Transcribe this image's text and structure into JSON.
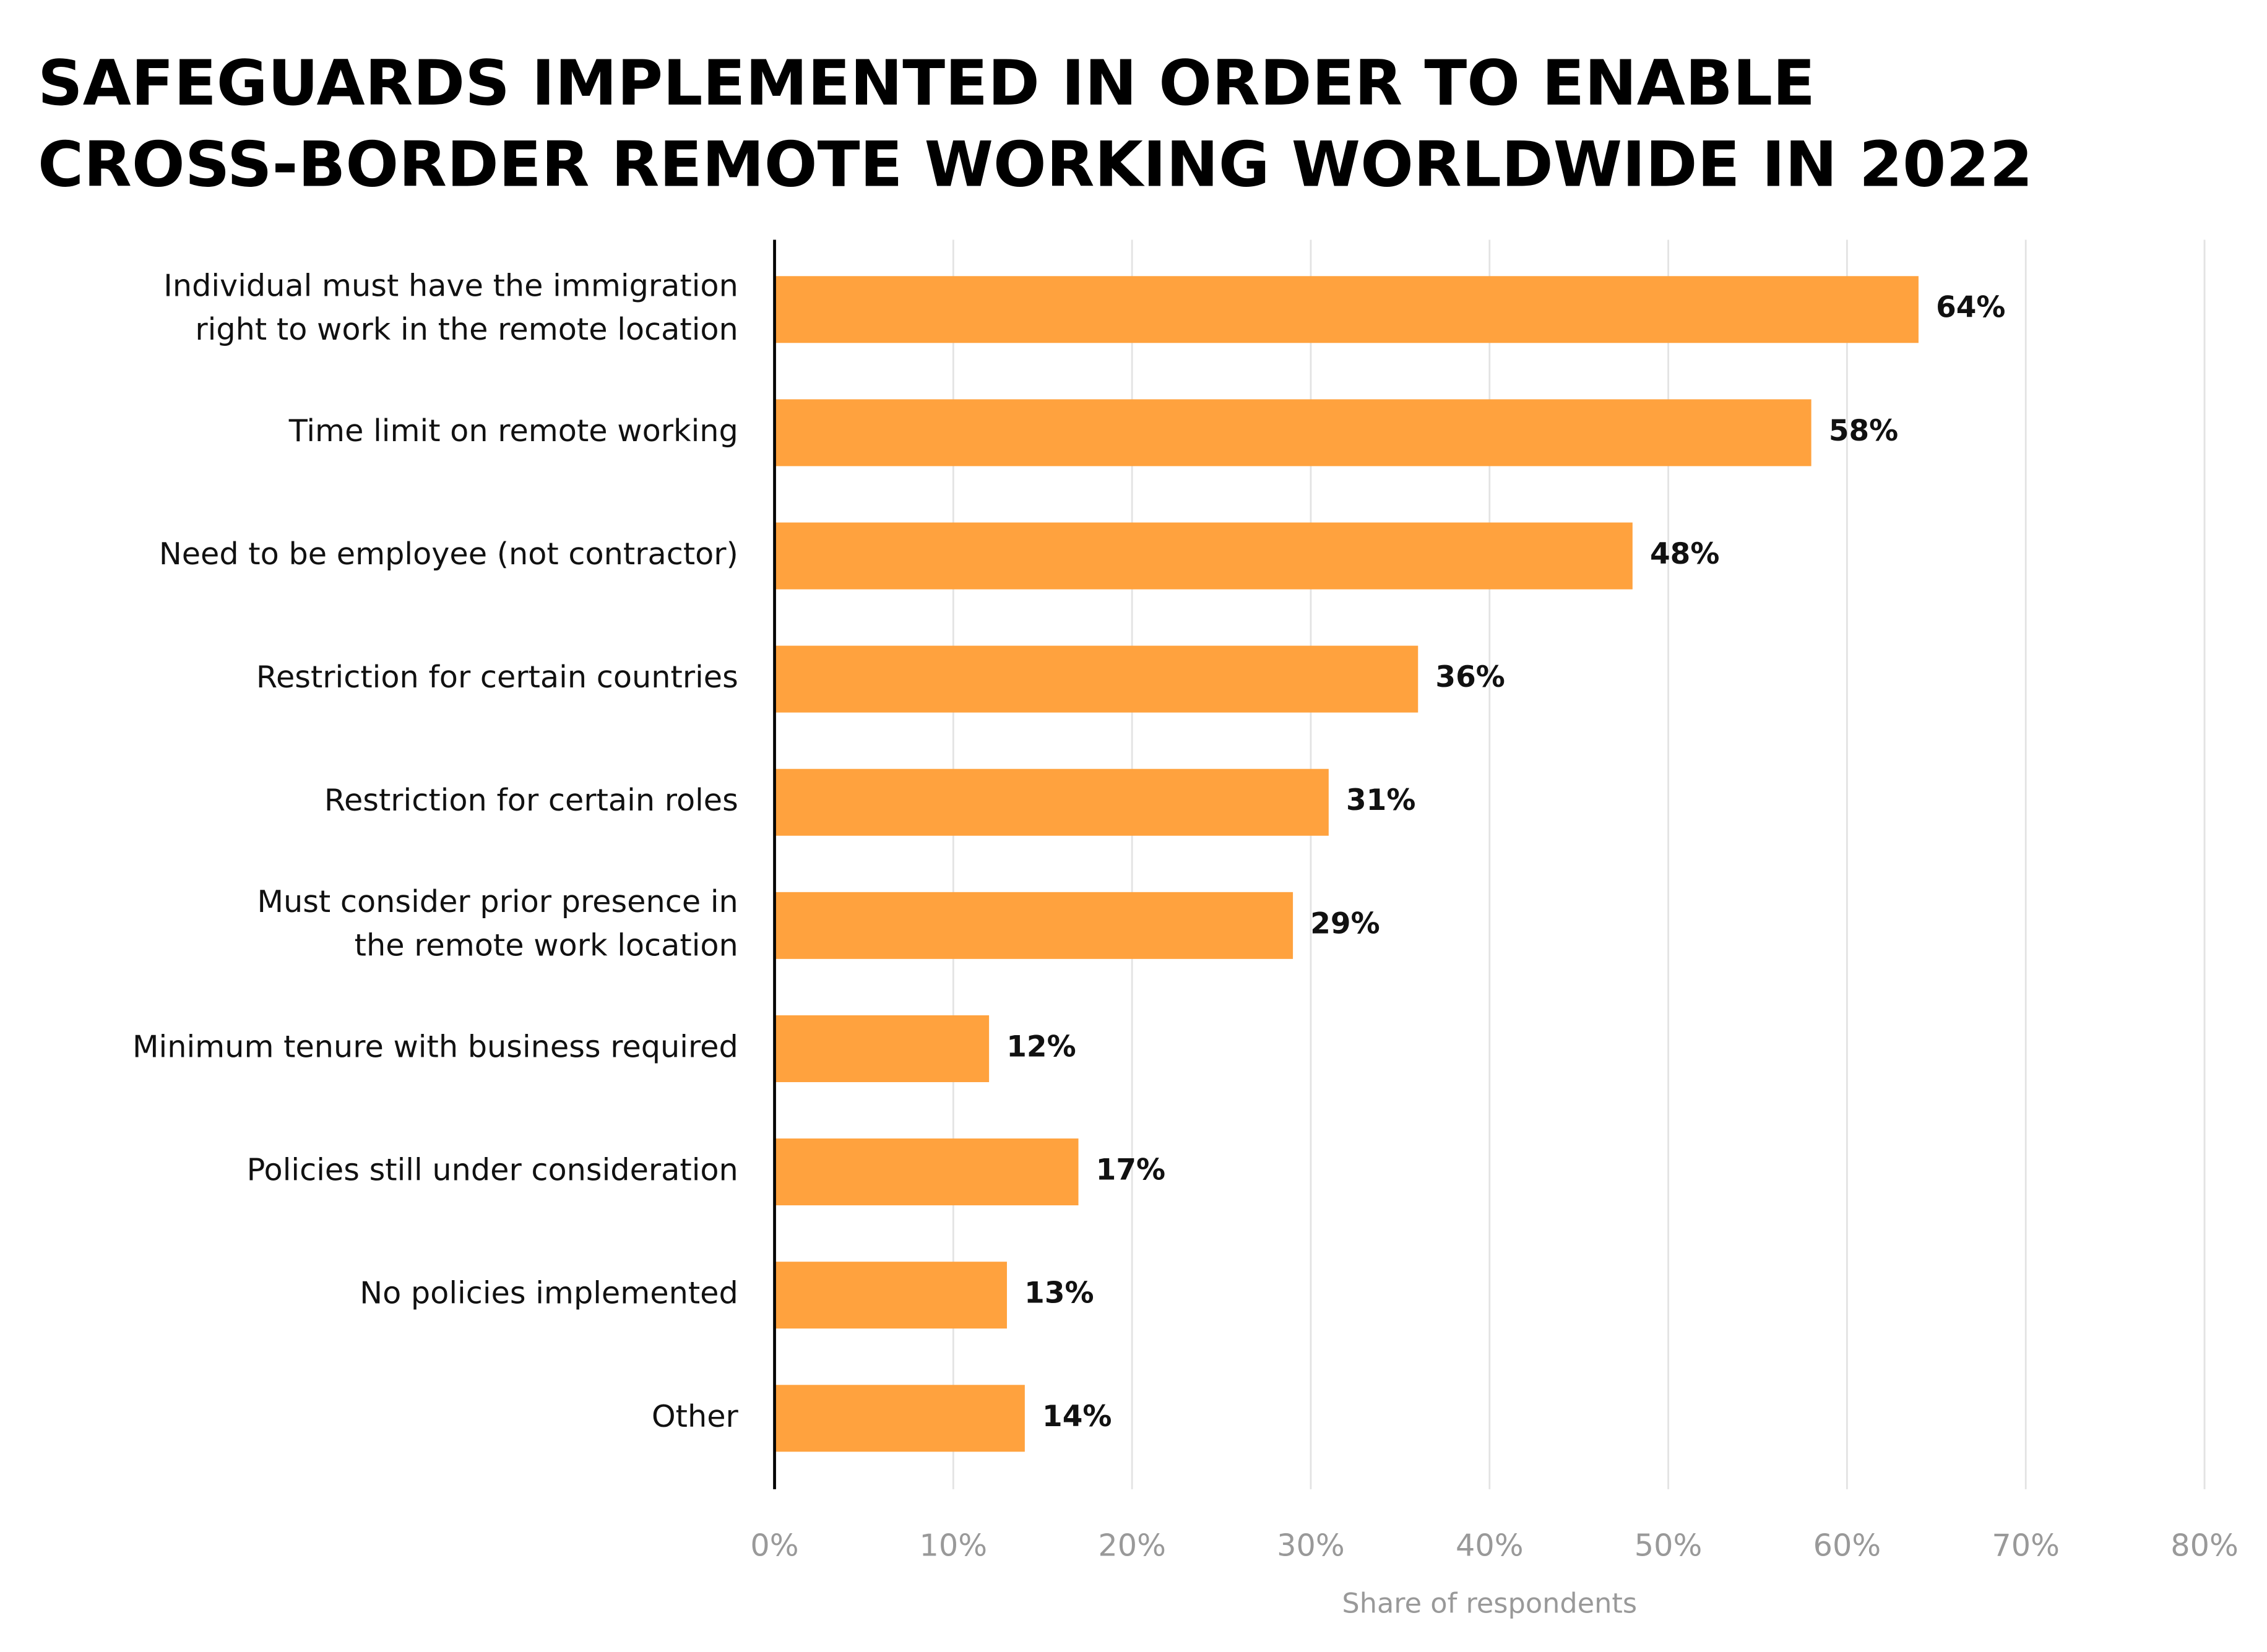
{
  "chart_data": {
    "type": "bar",
    "orientation": "horizontal",
    "title": [
      "SAFEGUARDS IMPLEMENTED IN ORDER TO ENABLE",
      "CROSS-BORDER REMOTE WORKING WORLDWIDE IN 2022"
    ],
    "categories": [
      [
        "Individual must have the immigration",
        "right to work in the remote location"
      ],
      "Time limit on remote working",
      "Need to be employee (not contractor)",
      "Restriction for certain countries",
      "Restriction for certain roles",
      [
        "Must consider prior presence in",
        "the remote work location"
      ],
      "Minimum tenure with business required",
      "Policies still under consideration",
      "No policies implemented",
      "Other"
    ],
    "values": [
      64,
      58,
      48,
      36,
      31,
      29,
      12,
      17,
      13,
      14
    ],
    "value_labels": [
      "64%",
      "58%",
      "48%",
      "36%",
      "31%",
      "29%",
      "12%",
      "17%",
      "13%",
      "14%"
    ],
    "color": "#ffa23e",
    "xlabel": "Share of respondents",
    "xlim": [
      0,
      80
    ],
    "xticks": [
      {
        "value": 0,
        "label": "0%"
      },
      {
        "value": 10,
        "label": "10%"
      },
      {
        "value": 20,
        "label": "20%"
      },
      {
        "value": 30,
        "label": "30%"
      },
      {
        "value": 40,
        "label": "40%"
      },
      {
        "value": 50,
        "label": "50%"
      },
      {
        "value": 60,
        "label": "60%"
      },
      {
        "value": 70,
        "label": "70%"
      },
      {
        "value": 80,
        "label": "80%"
      }
    ],
    "grid": true
  }
}
